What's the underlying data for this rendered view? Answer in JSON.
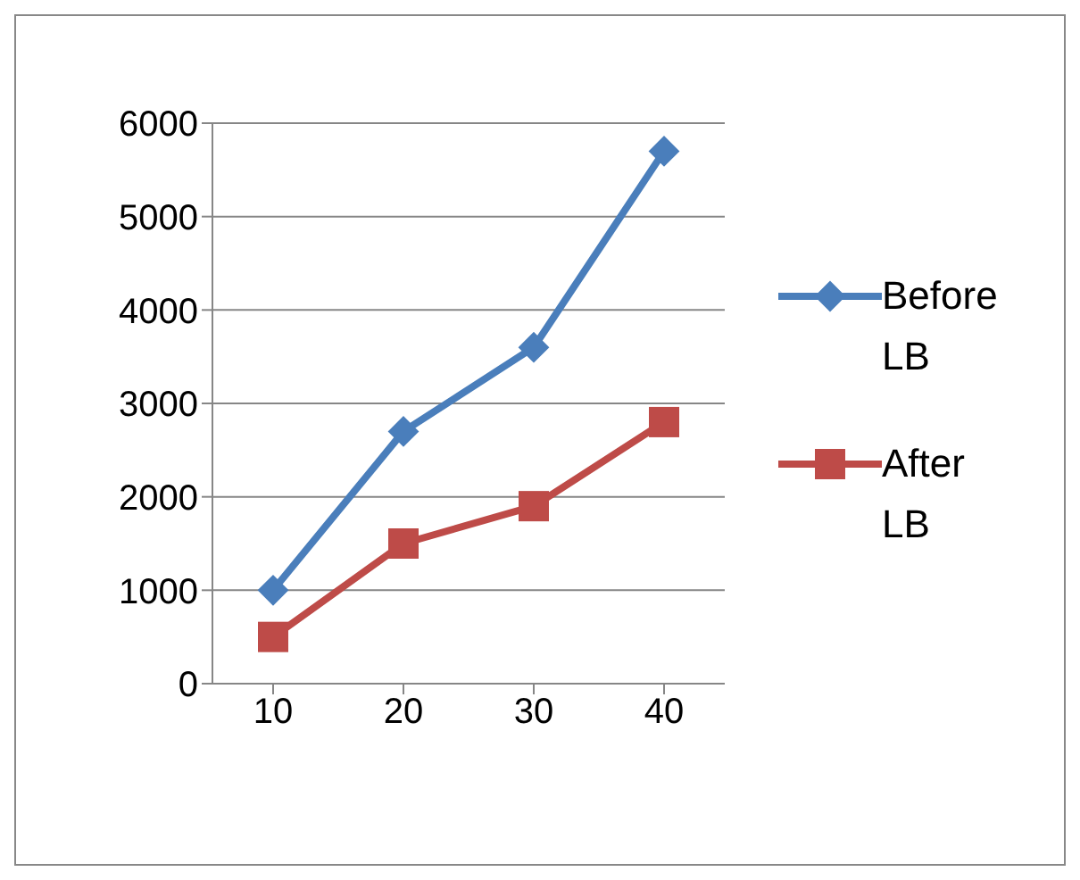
{
  "chart_data": {
    "type": "line",
    "categories": [
      "10",
      "20",
      "30",
      "40"
    ],
    "series": [
      {
        "name": "Before LB",
        "color": "#4a7ebb",
        "marker": "diamond",
        "values": [
          1000,
          2700,
          3600,
          5700
        ]
      },
      {
        "name": "After LB",
        "color": "#be4b48",
        "marker": "square",
        "values": [
          500,
          1500,
          1900,
          2800
        ]
      }
    ],
    "ylim": [
      0,
      6000
    ],
    "yticks": [
      0,
      1000,
      2000,
      3000,
      4000,
      5000,
      6000
    ],
    "grid": "y",
    "legend": "right",
    "line_style": "solid"
  }
}
